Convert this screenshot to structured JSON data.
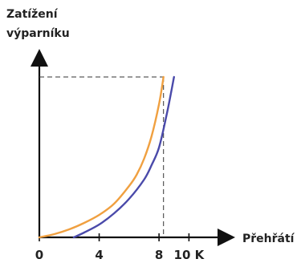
{
  "chart_data": {
    "type": "line",
    "ylabel_lines": [
      "Zatížení",
      "výparníku"
    ],
    "xlabel": "Přehřátí",
    "x_ticks": [
      {
        "value": 0,
        "label": "0"
      },
      {
        "value": 4,
        "label": "4"
      },
      {
        "value": 8,
        "label": "8"
      },
      {
        "value": 10,
        "label": "10 K"
      }
    ],
    "xlim": [
      0,
      12.5
    ],
    "ylim": [
      0,
      1.12
    ],
    "grid": false,
    "reference": {
      "x": 8.3,
      "y": 1.0
    },
    "series": [
      {
        "color": "#f0a040",
        "x": [
          0,
          1,
          2,
          3,
          4,
          5,
          6,
          6.5,
          7,
          7.5,
          8,
          8.3
        ],
        "y": [
          0,
          0.02,
          0.05,
          0.09,
          0.14,
          0.21,
          0.32,
          0.39,
          0.49,
          0.63,
          0.83,
          1.0
        ]
      },
      {
        "color": "#4a4aaa",
        "x": [
          2.3,
          3,
          4,
          5,
          6,
          7,
          7.5,
          8,
          8.5,
          8.8,
          9.0
        ],
        "y": [
          0,
          0.03,
          0.08,
          0.15,
          0.24,
          0.36,
          0.45,
          0.56,
          0.76,
          0.9,
          1.0
        ]
      }
    ]
  }
}
